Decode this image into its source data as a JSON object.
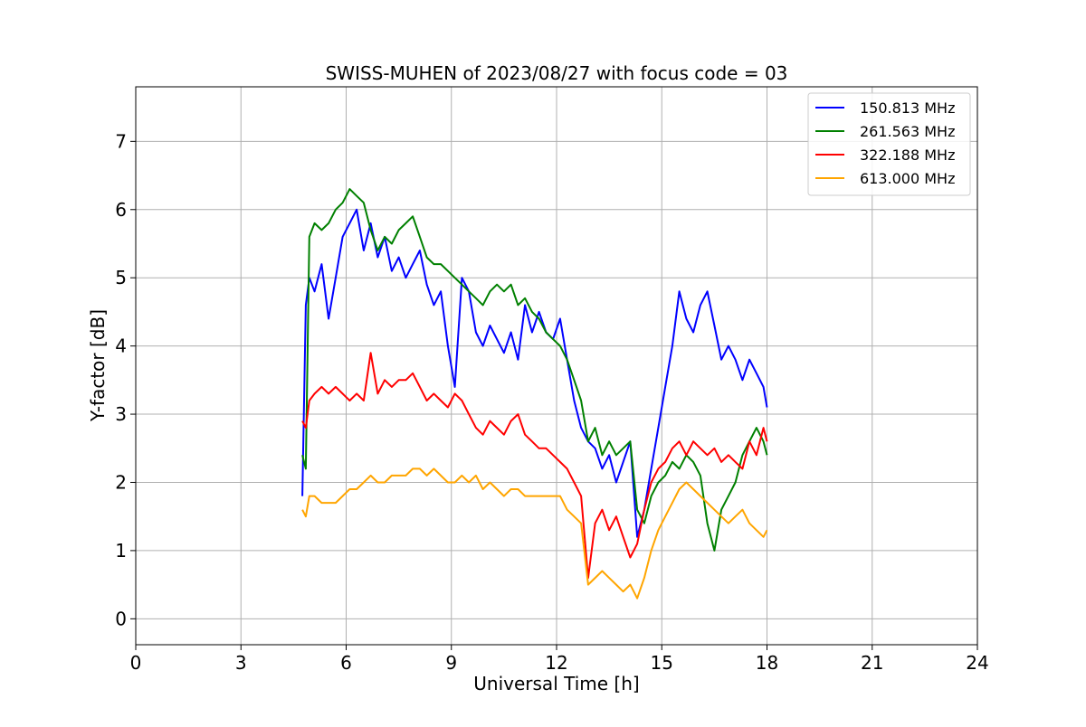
{
  "chart_data": {
    "type": "line",
    "title": "SWISS-MUHEN of 2023/08/27 with focus code = 03",
    "xlabel": "Universal Time [h]",
    "ylabel": "Y-factor [dB]",
    "xlim": [
      0,
      24
    ],
    "ylim": [
      -0.38,
      7.8
    ],
    "xticks": [
      0,
      3,
      6,
      9,
      12,
      15,
      18,
      21,
      24
    ],
    "yticks": [
      0,
      1,
      2,
      3,
      4,
      5,
      6,
      7
    ],
    "grid": true,
    "legend_position": "top-right",
    "series": [
      {
        "name": "150.813 MHz",
        "color": "#0000ff",
        "x": [
          4.75,
          4.85,
          4.95,
          5.1,
          5.3,
          5.5,
          5.7,
          5.9,
          6.1,
          6.3,
          6.5,
          6.7,
          6.9,
          7.1,
          7.3,
          7.5,
          7.7,
          7.9,
          8.1,
          8.3,
          8.5,
          8.7,
          8.9,
          9.1,
          9.3,
          9.5,
          9.7,
          9.9,
          10.1,
          10.3,
          10.5,
          10.7,
          10.9,
          11.1,
          11.3,
          11.5,
          11.7,
          11.9,
          12.1,
          12.3,
          12.5,
          12.7,
          12.9,
          13.1,
          13.3,
          13.5,
          13.7,
          13.9,
          14.1,
          14.3,
          14.5,
          14.7,
          14.9,
          15.1,
          15.3,
          15.5,
          15.7,
          15.9,
          16.1,
          16.3,
          16.5,
          16.7,
          16.9,
          17.1,
          17.3,
          17.5,
          17.7,
          17.9,
          18.0
        ],
        "y": [
          1.8,
          4.6,
          5.0,
          4.8,
          5.2,
          4.4,
          5.0,
          5.6,
          5.8,
          6.0,
          5.4,
          5.8,
          5.3,
          5.6,
          5.1,
          5.3,
          5.0,
          5.2,
          5.4,
          4.9,
          4.6,
          4.8,
          4.0,
          3.4,
          5.0,
          4.8,
          4.2,
          4.0,
          4.3,
          4.1,
          3.9,
          4.2,
          3.8,
          4.6,
          4.2,
          4.5,
          4.2,
          4.1,
          4.4,
          3.8,
          3.2,
          2.8,
          2.6,
          2.5,
          2.2,
          2.4,
          2.0,
          2.3,
          2.6,
          1.2,
          1.6,
          2.2,
          2.8,
          3.4,
          4.0,
          4.8,
          4.4,
          4.2,
          4.6,
          4.8,
          4.3,
          3.8,
          4.0,
          3.8,
          3.5,
          3.8,
          3.6,
          3.4,
          3.1
        ]
      },
      {
        "name": "261.563 MHz",
        "color": "#008000",
        "x": [
          4.75,
          4.85,
          4.95,
          5.1,
          5.3,
          5.5,
          5.7,
          5.9,
          6.1,
          6.3,
          6.5,
          6.7,
          6.9,
          7.1,
          7.3,
          7.5,
          7.7,
          7.9,
          8.1,
          8.3,
          8.5,
          8.7,
          8.9,
          9.1,
          9.3,
          9.5,
          9.7,
          9.9,
          10.1,
          10.3,
          10.5,
          10.7,
          10.9,
          11.1,
          11.3,
          11.5,
          11.7,
          11.9,
          12.1,
          12.3,
          12.5,
          12.7,
          12.9,
          13.1,
          13.3,
          13.5,
          13.7,
          13.9,
          14.1,
          14.3,
          14.5,
          14.7,
          14.9,
          15.1,
          15.3,
          15.5,
          15.7,
          15.9,
          16.1,
          16.3,
          16.5,
          16.7,
          16.9,
          17.1,
          17.3,
          17.5,
          17.7,
          17.9,
          18.0
        ],
        "y": [
          2.4,
          2.2,
          5.6,
          5.8,
          5.7,
          5.8,
          6.0,
          6.1,
          6.3,
          6.2,
          6.1,
          5.7,
          5.4,
          5.6,
          5.5,
          5.7,
          5.8,
          5.9,
          5.6,
          5.3,
          5.2,
          5.2,
          5.1,
          5.0,
          4.9,
          4.8,
          4.7,
          4.6,
          4.8,
          4.9,
          4.8,
          4.9,
          4.6,
          4.7,
          4.5,
          4.4,
          4.2,
          4.1,
          4.0,
          3.8,
          3.5,
          3.2,
          2.6,
          2.8,
          2.4,
          2.6,
          2.4,
          2.5,
          2.6,
          1.6,
          1.4,
          1.8,
          2.0,
          2.1,
          2.3,
          2.2,
          2.4,
          2.3,
          2.1,
          1.4,
          1.0,
          1.6,
          1.8,
          2.0,
          2.4,
          2.6,
          2.8,
          2.6,
          2.4
        ]
      },
      {
        "name": "322.188 MHz",
        "color": "#ff0000",
        "x": [
          4.75,
          4.85,
          4.95,
          5.1,
          5.3,
          5.5,
          5.7,
          5.9,
          6.1,
          6.3,
          6.5,
          6.7,
          6.9,
          7.1,
          7.3,
          7.5,
          7.7,
          7.9,
          8.1,
          8.3,
          8.5,
          8.7,
          8.9,
          9.1,
          9.3,
          9.5,
          9.7,
          9.9,
          10.1,
          10.3,
          10.5,
          10.7,
          10.9,
          11.1,
          11.3,
          11.5,
          11.7,
          11.9,
          12.1,
          12.3,
          12.5,
          12.7,
          12.9,
          13.1,
          13.3,
          13.5,
          13.7,
          13.9,
          14.1,
          14.3,
          14.5,
          14.7,
          14.9,
          15.1,
          15.3,
          15.5,
          15.7,
          15.9,
          16.1,
          16.3,
          16.5,
          16.7,
          16.9,
          17.1,
          17.3,
          17.5,
          17.7,
          17.9,
          18.0
        ],
        "y": [
          2.9,
          2.8,
          3.2,
          3.3,
          3.4,
          3.3,
          3.4,
          3.3,
          3.2,
          3.3,
          3.2,
          3.9,
          3.3,
          3.5,
          3.4,
          3.5,
          3.5,
          3.6,
          3.4,
          3.2,
          3.3,
          3.2,
          3.1,
          3.3,
          3.2,
          3.0,
          2.8,
          2.7,
          2.9,
          2.8,
          2.7,
          2.9,
          3.0,
          2.7,
          2.6,
          2.5,
          2.5,
          2.4,
          2.3,
          2.2,
          2.0,
          1.8,
          0.6,
          1.4,
          1.6,
          1.3,
          1.5,
          1.2,
          0.9,
          1.1,
          1.6,
          2.0,
          2.2,
          2.3,
          2.5,
          2.6,
          2.4,
          2.6,
          2.5,
          2.4,
          2.5,
          2.3,
          2.4,
          2.3,
          2.2,
          2.6,
          2.4,
          2.8,
          2.6
        ]
      },
      {
        "name": "613.000 MHz",
        "color": "#ffa500",
        "x": [
          4.75,
          4.85,
          4.95,
          5.1,
          5.3,
          5.5,
          5.7,
          5.9,
          6.1,
          6.3,
          6.5,
          6.7,
          6.9,
          7.1,
          7.3,
          7.5,
          7.7,
          7.9,
          8.1,
          8.3,
          8.5,
          8.7,
          8.9,
          9.1,
          9.3,
          9.5,
          9.7,
          9.9,
          10.1,
          10.3,
          10.5,
          10.7,
          10.9,
          11.1,
          11.3,
          11.5,
          11.7,
          11.9,
          12.1,
          12.3,
          12.5,
          12.7,
          12.9,
          13.1,
          13.3,
          13.5,
          13.7,
          13.9,
          14.1,
          14.3,
          14.5,
          14.7,
          14.9,
          15.1,
          15.3,
          15.5,
          15.7,
          15.9,
          16.1,
          16.3,
          16.5,
          16.7,
          16.9,
          17.1,
          17.3,
          17.5,
          17.7,
          17.9,
          18.0
        ],
        "y": [
          1.6,
          1.5,
          1.8,
          1.8,
          1.7,
          1.7,
          1.7,
          1.8,
          1.9,
          1.9,
          2.0,
          2.1,
          2.0,
          2.0,
          2.1,
          2.1,
          2.1,
          2.2,
          2.2,
          2.1,
          2.2,
          2.1,
          2.0,
          2.0,
          2.1,
          2.0,
          2.1,
          1.9,
          2.0,
          1.9,
          1.8,
          1.9,
          1.9,
          1.8,
          1.8,
          1.8,
          1.8,
          1.8,
          1.8,
          1.6,
          1.5,
          1.4,
          0.5,
          0.6,
          0.7,
          0.6,
          0.5,
          0.4,
          0.5,
          0.3,
          0.6,
          1.0,
          1.3,
          1.5,
          1.7,
          1.9,
          2.0,
          1.9,
          1.8,
          1.7,
          1.6,
          1.5,
          1.4,
          1.5,
          1.6,
          1.4,
          1.3,
          1.2,
          1.3
        ]
      }
    ]
  }
}
